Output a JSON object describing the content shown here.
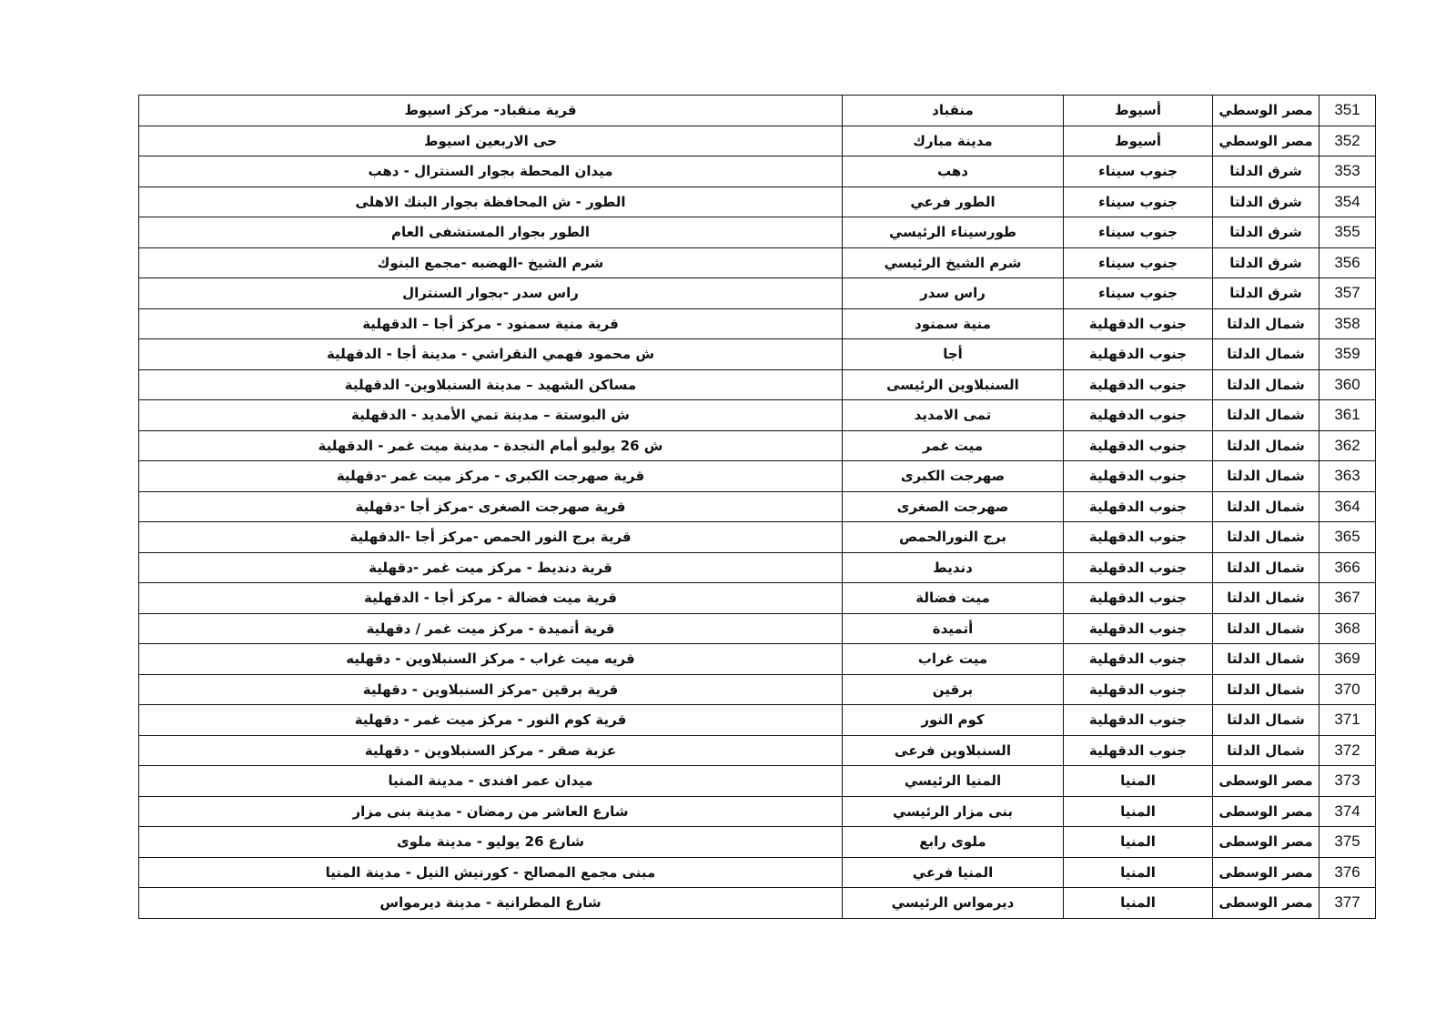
{
  "table": {
    "rows": [
      [
        "351",
        "مصر الوسطي",
        "أسيوط",
        "منقباد",
        "قرية منقباد- مركز اسيوط"
      ],
      [
        "352",
        "مصر الوسطي",
        "أسيوط",
        "مدينة مبارك",
        "حى الاربعين اسيوط"
      ],
      [
        "353",
        "شرق الدلتا",
        "جنوب سيناء",
        "دهب",
        "ميدان المحطة بجوار السنترال - دهب"
      ],
      [
        "354",
        "شرق الدلتا",
        "جنوب سيناء",
        "الطور فرعي",
        "الطور - ش المحافظة بجوار البنك الاهلى"
      ],
      [
        "355",
        "شرق الدلتا",
        "جنوب سيناء",
        "طورسيناء الرئيسي",
        "الطور بجوار المستشفى العام"
      ],
      [
        "356",
        "شرق الدلتا",
        "جنوب سيناء",
        "شرم الشيخ الرئيسي",
        "شرم الشيخ -الهضبه -مجمع البنوك"
      ],
      [
        "357",
        "شرق الدلتا",
        "جنوب سيناء",
        "راس سدر",
        "راس سدر -بجوار السنترال"
      ],
      [
        "358",
        "شمال الدلتا",
        "جنوب الدقهلية",
        "منية سمنود",
        "قرية منية سمنود - مركز أجا – الدقهلية"
      ],
      [
        "359",
        "شمال الدلتا",
        "جنوب الدقهلية",
        "أجا",
        "ش محمود فهمي النقراشي - مدينة أجا - الدقهلية"
      ],
      [
        "360",
        "شمال الدلتا",
        "جنوب الدقهلية",
        "السنبلاوين الرئيسى",
        "مساكن الشهيد – مدينة السنبلاوين- الدقهلية"
      ],
      [
        "361",
        "شمال الدلتا",
        "جنوب الدقهلية",
        "تمى الامديد",
        "ش البوستة – مدينة تمي الأمديد - الدقهلية"
      ],
      [
        "362",
        "شمال الدلتا",
        "جنوب الدقهلية",
        "ميت غمر",
        "ش 26 يوليو أمام النجدة - مدينة ميت غمر - الدقهلية"
      ],
      [
        "363",
        "شمال الدلتا",
        "جنوب الدقهلية",
        "صهرجت الكبرى",
        "قرية صهرجت الكبرى - مركز ميت غمر -دقهلية"
      ],
      [
        "364",
        "شمال الدلتا",
        "جنوب الدقهلية",
        "صهرجت الصغرى",
        "قرية صهرجت الصغرى -مركز أجا -دقهلية"
      ],
      [
        "365",
        "شمال الدلتا",
        "جنوب الدقهلية",
        "برج النورالحمص",
        "قرية برج النور الحمص -مركز أجا -الدقهلية"
      ],
      [
        "366",
        "شمال الدلتا",
        "جنوب الدقهلية",
        "دنديط",
        "قرية دنديط - مركز ميت غمر -دقهلية"
      ],
      [
        "367",
        "شمال الدلتا",
        "جنوب الدقهلية",
        "ميت فضالة",
        "قرية ميت فضالة  - مركز أجا - الدقهلية"
      ],
      [
        "368",
        "شمال الدلتا",
        "جنوب الدقهلية",
        "أتميدة",
        "قرية أتميدة - مركز ميت غمر / دقهلية"
      ],
      [
        "369",
        "شمال الدلتا",
        "جنوب الدقهلية",
        "ميت غراب",
        "قريه ميت غراب - مركز السنبلاوين - دقهليه"
      ],
      [
        "370",
        "شمال الدلتا",
        "جنوب الدقهلية",
        "برقين",
        "قرية برقين -مركز السنبلاوين - دقهلية"
      ],
      [
        "371",
        "شمال الدلتا",
        "جنوب الدقهلية",
        "كوم النور",
        "قرية كوم النور - مركز ميت غمر - دقهلية"
      ],
      [
        "372",
        "شمال الدلتا",
        "جنوب الدقهلية",
        "السنبلاوين فرعى",
        "عزبة صقر - مركز السنبلاوين - دقهلية"
      ],
      [
        "373",
        "مصر الوسطى",
        "المنيا",
        "المنيا الرئيسي",
        "ميدان عمر افندى - مدينة المنيا"
      ],
      [
        "374",
        "مصر الوسطى",
        "المنيا",
        "بنى مزار الرئيسي",
        "شارع العاشر من رمضان - مدينة بنى مزار"
      ],
      [
        "375",
        "مصر الوسطى",
        "المنيا",
        "ملوى رابع",
        "شارع 26 يوليو - مدينة ملوى"
      ],
      [
        "376",
        "مصر الوسطى",
        "المنيا",
        "المنيا فرعي",
        "مبنى مجمع المصالح - كورنيش النيل - مدينة المنيا"
      ],
      [
        "377",
        "مصر الوسطى",
        "المنيا",
        "ديرمواس الرئيسي",
        "شارع المطرانية - مدينة ديرمواس"
      ]
    ]
  }
}
